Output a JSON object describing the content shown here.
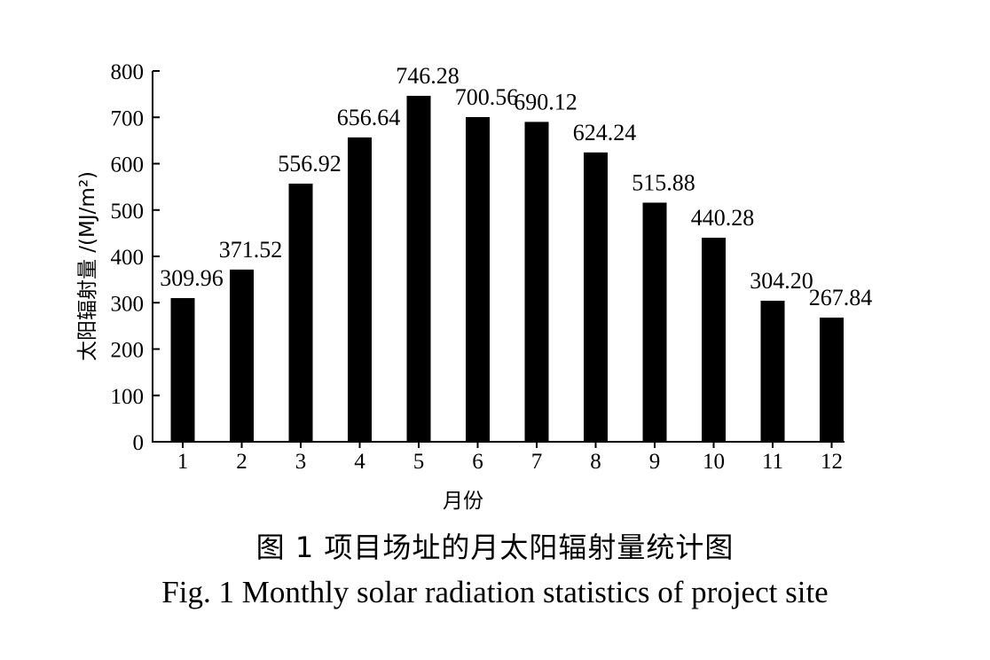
{
  "chart_data": {
    "type": "bar",
    "categories": [
      "1",
      "2",
      "3",
      "4",
      "5",
      "6",
      "7",
      "8",
      "9",
      "10",
      "11",
      "12"
    ],
    "values": [
      309.96,
      371.52,
      556.92,
      656.64,
      746.28,
      700.56,
      690.12,
      624.24,
      515.88,
      440.28,
      304.2,
      267.84
    ],
    "value_labels": [
      "309.96",
      "371.52",
      "556.92",
      "656.64",
      "746.28",
      "700.56",
      "690.12",
      "624.24",
      "515.88",
      "440.28",
      "304.20",
      "267.84"
    ],
    "ylabel": "太阳辐射量 /(MJ/m²)",
    "xlabel": "月份",
    "ylim": [
      0,
      800
    ],
    "yticks": [
      0,
      100,
      200,
      300,
      400,
      500,
      600,
      700,
      800
    ],
    "grid": false,
    "bar_color": "#000000"
  },
  "caption": {
    "cn": "图 1  项目场址的月太阳辐射量统计图",
    "en": "Fig. 1  Monthly solar radiation statistics of project site"
  }
}
